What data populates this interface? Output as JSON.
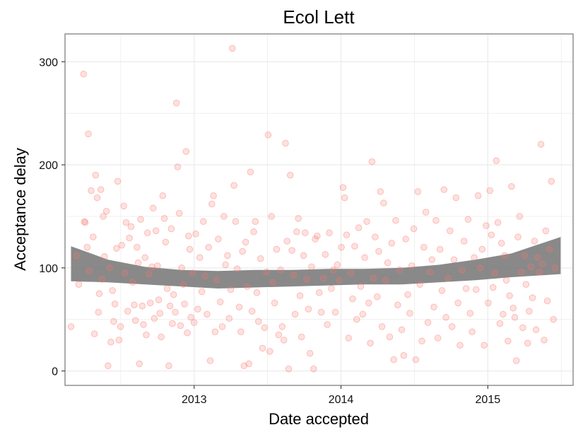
{
  "chart_data": {
    "type": "scatter",
    "title": "Ecol Lett",
    "xlabel": "Date accepted",
    "ylabel": "Acceptance delay",
    "xlim": [
      "2012-02-15",
      "2015-08-01"
    ],
    "ylim": [
      -14,
      327
    ],
    "x_ticks": [
      {
        "date": "2013-01-01",
        "label": "2013"
      },
      {
        "date": "2014-01-01",
        "label": "2014"
      },
      {
        "date": "2015-01-01",
        "label": "2015"
      }
    ],
    "y_ticks": [
      0,
      100,
      200,
      300
    ],
    "grid": true,
    "colors": {
      "points": "#f8766d",
      "band": "#7f7f7f",
      "panel_border": "#808080",
      "grid": "#ebebeb"
    },
    "smooth_band": {
      "x": [
        "2012-03-01",
        "2012-06-01",
        "2012-09-01",
        "2012-12-01",
        "2013-03-01",
        "2013-06-01",
        "2013-09-01",
        "2013-12-01",
        "2014-03-01",
        "2014-06-01",
        "2014-09-01",
        "2014-12-01",
        "2015-03-01",
        "2015-07-01"
      ],
      "lower": [
        87,
        86,
        84,
        82,
        80,
        81,
        82,
        83,
        84,
        84,
        86,
        88,
        91,
        94
      ],
      "upper": [
        121,
        108,
        101,
        98,
        97,
        98,
        98,
        99,
        99,
        100,
        103,
        108,
        114,
        130
      ]
    },
    "points": [
      [
        "2012-03-01",
        43
      ],
      [
        "2012-03-15",
        112
      ],
      [
        "2012-03-20",
        84
      ],
      [
        "2012-04-01",
        288
      ],
      [
        "2012-04-03",
        145
      ],
      [
        "2012-04-05",
        144
      ],
      [
        "2012-04-10",
        120
      ],
      [
        "2012-04-13",
        230
      ],
      [
        "2012-04-15",
        97
      ],
      [
        "2012-04-20",
        175
      ],
      [
        "2012-04-25",
        130
      ],
      [
        "2012-04-28",
        36
      ],
      [
        "2012-05-01",
        190
      ],
      [
        "2012-05-05",
        168
      ],
      [
        "2012-05-08",
        57
      ],
      [
        "2012-05-10",
        75
      ],
      [
        "2012-05-14",
        176
      ],
      [
        "2012-05-17",
        89
      ],
      [
        "2012-05-20",
        150
      ],
      [
        "2012-05-23",
        111
      ],
      [
        "2012-05-28",
        155
      ],
      [
        "2012-06-01",
        5
      ],
      [
        "2012-06-05",
        100
      ],
      [
        "2012-06-08",
        28
      ],
      [
        "2012-06-12",
        78
      ],
      [
        "2012-06-15",
        48
      ],
      [
        "2012-06-18",
        65
      ],
      [
        "2012-06-22",
        119
      ],
      [
        "2012-06-25",
        184
      ],
      [
        "2012-06-28",
        30
      ],
      [
        "2012-07-02",
        43
      ],
      [
        "2012-07-05",
        122
      ],
      [
        "2012-07-10",
        160
      ],
      [
        "2012-07-13",
        95
      ],
      [
        "2012-07-16",
        144
      ],
      [
        "2012-07-20",
        58
      ],
      [
        "2012-07-24",
        129
      ],
      [
        "2012-07-28",
        140
      ],
      [
        "2012-08-01",
        86
      ],
      [
        "2012-08-05",
        64
      ],
      [
        "2012-08-08",
        49
      ],
      [
        "2012-08-12",
        120
      ],
      [
        "2012-08-15",
        105
      ],
      [
        "2012-08-18",
        7
      ],
      [
        "2012-08-21",
        147
      ],
      [
        "2012-08-25",
        63
      ],
      [
        "2012-08-28",
        45
      ],
      [
        "2012-09-01",
        110
      ],
      [
        "2012-09-04",
        35
      ],
      [
        "2012-09-07",
        134
      ],
      [
        "2012-09-11",
        94
      ],
      [
        "2012-09-14",
        66
      ],
      [
        "2012-09-18",
        101
      ],
      [
        "2012-09-21",
        158
      ],
      [
        "2012-09-24",
        51
      ],
      [
        "2012-09-28",
        136
      ],
      [
        "2012-10-02",
        102
      ],
      [
        "2012-10-05",
        69
      ],
      [
        "2012-10-08",
        56
      ],
      [
        "2012-10-11",
        33
      ],
      [
        "2012-10-15",
        170
      ],
      [
        "2012-10-19",
        148
      ],
      [
        "2012-10-22",
        125
      ],
      [
        "2012-10-26",
        80
      ],
      [
        "2012-10-30",
        5
      ],
      [
        "2012-11-02",
        63
      ],
      [
        "2012-11-05",
        138
      ],
      [
        "2012-11-08",
        46
      ],
      [
        "2012-11-11",
        74
      ],
      [
        "2012-11-15",
        57
      ],
      [
        "2012-11-18",
        260
      ],
      [
        "2012-11-21",
        198
      ],
      [
        "2012-11-25",
        153
      ],
      [
        "2012-11-28",
        44
      ],
      [
        "2012-12-01",
        100
      ],
      [
        "2012-12-05",
        84
      ],
      [
        "2012-12-08",
        65
      ],
      [
        "2012-12-12",
        213
      ],
      [
        "2012-12-15",
        37
      ],
      [
        "2012-12-18",
        131
      ],
      [
        "2012-12-21",
        118
      ],
      [
        "2012-12-24",
        52
      ],
      [
        "2012-12-28",
        95
      ],
      [
        "2013-01-01",
        47
      ],
      [
        "2013-01-05",
        133
      ],
      [
        "2013-01-10",
        60
      ],
      [
        "2013-01-15",
        110
      ],
      [
        "2013-01-20",
        77
      ],
      [
        "2013-01-24",
        145
      ],
      [
        "2013-01-28",
        92
      ],
      [
        "2013-02-02",
        55
      ],
      [
        "2013-02-06",
        120
      ],
      [
        "2013-02-10",
        10
      ],
      [
        "2013-02-14",
        162
      ],
      [
        "2013-02-18",
        170
      ],
      [
        "2013-02-22",
        38
      ],
      [
        "2013-02-26",
        88
      ],
      [
        "2013-03-02",
        128
      ],
      [
        "2013-03-07",
        67
      ],
      [
        "2013-03-12",
        43
      ],
      [
        "2013-03-16",
        150
      ],
      [
        "2013-03-20",
        103
      ],
      [
        "2013-03-25",
        112
      ],
      [
        "2013-03-29",
        51
      ],
      [
        "2013-04-02",
        79
      ],
      [
        "2013-04-06",
        313
      ],
      [
        "2013-04-10",
        180
      ],
      [
        "2013-04-14",
        145
      ],
      [
        "2013-04-18",
        99
      ],
      [
        "2013-04-23",
        62
      ],
      [
        "2013-04-27",
        38
      ],
      [
        "2013-05-01",
        116
      ],
      [
        "2013-05-05",
        5
      ],
      [
        "2013-05-09",
        125
      ],
      [
        "2013-05-13",
        82
      ],
      [
        "2013-05-17",
        7
      ],
      [
        "2013-05-21",
        193
      ],
      [
        "2013-05-25",
        58
      ],
      [
        "2013-05-29",
        135
      ],
      [
        "2013-06-02",
        145
      ],
      [
        "2013-06-06",
        76
      ],
      [
        "2013-06-10",
        48
      ],
      [
        "2013-06-15",
        109
      ],
      [
        "2013-06-20",
        22
      ],
      [
        "2013-06-25",
        42
      ],
      [
        "2013-06-30",
        96
      ],
      [
        "2013-07-04",
        229
      ],
      [
        "2013-07-08",
        19
      ],
      [
        "2013-07-12",
        150
      ],
      [
        "2013-07-16",
        86
      ],
      [
        "2013-07-20",
        66
      ],
      [
        "2013-07-25",
        118
      ],
      [
        "2013-07-30",
        35
      ],
      [
        "2013-08-04",
        98
      ],
      [
        "2013-08-08",
        43
      ],
      [
        "2013-08-12",
        30
      ],
      [
        "2013-08-16",
        221
      ],
      [
        "2013-08-20",
        126
      ],
      [
        "2013-08-24",
        2
      ],
      [
        "2013-08-28",
        190
      ],
      [
        "2013-09-01",
        117
      ],
      [
        "2013-09-05",
        93
      ],
      [
        "2013-09-09",
        55
      ],
      [
        "2013-09-13",
        135
      ],
      [
        "2013-09-17",
        148
      ],
      [
        "2013-09-21",
        73
      ],
      [
        "2013-09-25",
        33
      ],
      [
        "2013-09-30",
        112
      ],
      [
        "2013-10-04",
        134
      ],
      [
        "2013-10-08",
        89
      ],
      [
        "2013-10-12",
        60
      ],
      [
        "2013-10-16",
        17
      ],
      [
        "2013-10-20",
        101
      ],
      [
        "2013-10-25",
        2
      ],
      [
        "2013-10-29",
        128
      ],
      [
        "2013-11-03",
        131
      ],
      [
        "2013-11-08",
        76
      ],
      [
        "2013-11-13",
        57
      ],
      [
        "2013-11-18",
        90
      ],
      [
        "2013-11-23",
        113
      ],
      [
        "2013-11-28",
        45
      ],
      [
        "2013-12-03",
        134
      ],
      [
        "2013-12-08",
        80
      ],
      [
        "2013-12-13",
        98
      ],
      [
        "2013-12-18",
        57
      ],
      [
        "2013-12-23",
        103
      ],
      [
        "2013-12-28",
        88
      ],
      [
        "2014-01-02",
        120
      ],
      [
        "2014-01-06",
        178
      ],
      [
        "2014-01-10",
        168
      ],
      [
        "2014-01-15",
        132
      ],
      [
        "2014-01-20",
        32
      ],
      [
        "2014-01-25",
        95
      ],
      [
        "2014-01-30",
        70
      ],
      [
        "2014-02-04",
        121
      ],
      [
        "2014-02-09",
        50
      ],
      [
        "2014-02-14",
        139
      ],
      [
        "2014-02-19",
        82
      ],
      [
        "2014-02-24",
        55
      ],
      [
        "2014-03-01",
        110
      ],
      [
        "2014-03-06",
        145
      ],
      [
        "2014-03-11",
        66
      ],
      [
        "2014-03-15",
        27
      ],
      [
        "2014-03-19",
        203
      ],
      [
        "2014-03-23",
        90
      ],
      [
        "2014-03-27",
        130
      ],
      [
        "2014-04-01",
        72
      ],
      [
        "2014-04-05",
        116
      ],
      [
        "2014-04-09",
        174
      ],
      [
        "2014-04-13",
        43
      ],
      [
        "2014-04-17",
        163
      ],
      [
        "2014-04-22",
        88
      ],
      [
        "2014-04-27",
        105
      ],
      [
        "2014-05-02",
        33
      ],
      [
        "2014-05-07",
        124
      ],
      [
        "2014-05-12",
        11
      ],
      [
        "2014-05-17",
        146
      ],
      [
        "2014-05-22",
        64
      ],
      [
        "2014-05-27",
        98
      ],
      [
        "2014-06-01",
        40
      ],
      [
        "2014-06-06",
        15
      ],
      [
        "2014-06-11",
        128
      ],
      [
        "2014-06-16",
        74
      ],
      [
        "2014-06-21",
        56
      ],
      [
        "2014-06-26",
        102
      ],
      [
        "2014-07-01",
        138
      ],
      [
        "2014-07-06",
        11
      ],
      [
        "2014-07-11",
        174
      ],
      [
        "2014-07-16",
        84
      ],
      [
        "2014-07-21",
        29
      ],
      [
        "2014-07-26",
        120
      ],
      [
        "2014-07-31",
        154
      ],
      [
        "2014-08-05",
        47
      ],
      [
        "2014-08-10",
        96
      ],
      [
        "2014-08-15",
        108
      ],
      [
        "2014-08-20",
        62
      ],
      [
        "2014-08-25",
        146
      ],
      [
        "2014-08-30",
        32
      ],
      [
        "2014-09-04",
        118
      ],
      [
        "2014-09-09",
        78
      ],
      [
        "2014-09-14",
        176
      ],
      [
        "2014-09-19",
        52
      ],
      [
        "2014-09-24",
        90
      ],
      [
        "2014-09-29",
        136
      ],
      [
        "2014-10-04",
        43
      ],
      [
        "2014-10-09",
        108
      ],
      [
        "2014-10-14",
        168
      ],
      [
        "2014-10-19",
        66
      ],
      [
        "2014-10-24",
        25
      ],
      [
        "2014-10-29",
        98
      ],
      [
        "2014-11-03",
        126
      ],
      [
        "2014-11-08",
        80
      ],
      [
        "2014-11-13",
        147
      ],
      [
        "2014-11-18",
        56
      ],
      [
        "2014-11-23",
        38
      ],
      [
        "2014-11-28",
        110
      ],
      [
        "2014-12-03",
        79
      ],
      [
        "2014-12-08",
        170
      ],
      [
        "2014-12-13",
        100
      ],
      [
        "2014-12-18",
        118
      ],
      [
        "2014-12-23",
        25
      ],
      [
        "2014-12-28",
        141
      ],
      [
        "2015-01-02",
        66
      ],
      [
        "2015-01-06",
        175
      ],
      [
        "2015-01-10",
        132
      ],
      [
        "2015-01-14",
        81
      ],
      [
        "2015-01-18",
        95
      ],
      [
        "2015-01-22",
        204
      ],
      [
        "2015-01-26",
        144
      ],
      [
        "2015-01-31",
        46
      ],
      [
        "2015-02-04",
        124
      ],
      [
        "2015-02-08",
        55
      ],
      [
        "2015-02-12",
        112
      ],
      [
        "2015-02-16",
        88
      ],
      [
        "2015-02-20",
        29
      ],
      [
        "2015-02-24",
        73
      ],
      [
        "2015-03-01",
        179
      ],
      [
        "2015-03-05",
        61
      ],
      [
        "2015-03-09",
        52
      ],
      [
        "2015-03-13",
        10
      ],
      [
        "2015-03-17",
        130
      ],
      [
        "2015-03-21",
        150
      ],
      [
        "2015-03-25",
        96
      ],
      [
        "2015-03-29",
        42
      ],
      [
        "2015-04-02",
        112
      ],
      [
        "2015-04-06",
        84
      ],
      [
        "2015-04-10",
        27
      ],
      [
        "2015-04-14",
        58
      ],
      [
        "2015-04-18",
        101
      ],
      [
        "2015-04-22",
        71
      ],
      [
        "2015-04-27",
        126
      ],
      [
        "2015-05-01",
        40
      ],
      [
        "2015-05-05",
        110
      ],
      [
        "2015-05-09",
        96
      ],
      [
        "2015-05-13",
        220
      ],
      [
        "2015-05-17",
        104
      ],
      [
        "2015-05-21",
        30
      ],
      [
        "2015-05-25",
        136
      ],
      [
        "2015-05-29",
        68
      ],
      [
        "2015-06-03",
        118
      ],
      [
        "2015-06-08",
        184
      ],
      [
        "2015-06-13",
        50
      ],
      [
        "2015-06-17",
        100
      ]
    ]
  }
}
